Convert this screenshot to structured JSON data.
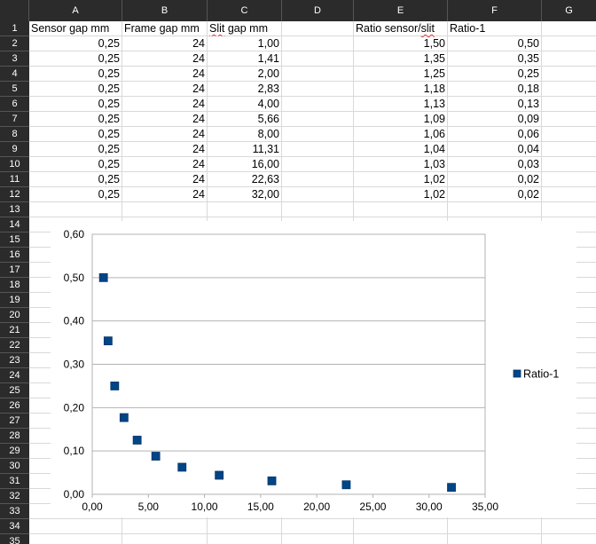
{
  "sheet": {
    "columns": [
      "A",
      "B",
      "C",
      "D",
      "E",
      "F",
      "G"
    ],
    "rows": [
      "1",
      "2",
      "3",
      "4",
      "5",
      "6",
      "7",
      "8",
      "9",
      "10",
      "11",
      "12",
      "13",
      "14",
      "15",
      "16",
      "17",
      "18",
      "19",
      "20",
      "21",
      "22",
      "23",
      "24",
      "25",
      "26",
      "27",
      "28",
      "29",
      "30",
      "31",
      "32",
      "33",
      "34",
      "35"
    ],
    "headers": {
      "a": "Sensor gap mm",
      "b": "Frame gap mm",
      "c": "Slit gap mm",
      "e": "Ratio sensor/slit",
      "f": "Ratio-1"
    },
    "data_rows": [
      {
        "a": "0,25",
        "b": "24",
        "c": "1,00",
        "e": "1,50",
        "f": "0,50"
      },
      {
        "a": "0,25",
        "b": "24",
        "c": "1,41",
        "e": "1,35",
        "f": "0,35"
      },
      {
        "a": "0,25",
        "b": "24",
        "c": "2,00",
        "e": "1,25",
        "f": "0,25"
      },
      {
        "a": "0,25",
        "b": "24",
        "c": "2,83",
        "e": "1,18",
        "f": "0,18"
      },
      {
        "a": "0,25",
        "b": "24",
        "c": "4,00",
        "e": "1,13",
        "f": "0,13"
      },
      {
        "a": "0,25",
        "b": "24",
        "c": "5,66",
        "e": "1,09",
        "f": "0,09"
      },
      {
        "a": "0,25",
        "b": "24",
        "c": "8,00",
        "e": "1,06",
        "f": "0,06"
      },
      {
        "a": "0,25",
        "b": "24",
        "c": "11,31",
        "e": "1,04",
        "f": "0,04"
      },
      {
        "a": "0,25",
        "b": "24",
        "c": "16,00",
        "e": "1,03",
        "f": "0,03"
      },
      {
        "a": "0,25",
        "b": "24",
        "c": "22,63",
        "e": "1,02",
        "f": "0,02"
      },
      {
        "a": "0,25",
        "b": "24",
        "c": "32,00",
        "e": "1,02",
        "f": "0,02"
      }
    ]
  },
  "chart_data": {
    "type": "scatter",
    "title": "",
    "xlabel": "",
    "ylabel": "",
    "xlim": [
      0,
      35
    ],
    "ylim": [
      0,
      0.6
    ],
    "x_ticks": [
      "0,00",
      "5,00",
      "10,00",
      "15,00",
      "20,00",
      "25,00",
      "30,00",
      "35,00"
    ],
    "y_ticks": [
      "0,00",
      "0,10",
      "0,20",
      "0,30",
      "0,40",
      "0,50",
      "0,60"
    ],
    "grid": "horizontal",
    "legend_position": "right",
    "series": [
      {
        "name": "Ratio-1",
        "color": "#004586",
        "marker": "square",
        "x": [
          1.0,
          1.41,
          2.0,
          2.83,
          4.0,
          5.66,
          8.0,
          11.31,
          16.0,
          22.63,
          32.0
        ],
        "y": [
          0.5,
          0.354,
          0.25,
          0.177,
          0.125,
          0.088,
          0.0625,
          0.044,
          0.031,
          0.022,
          0.016
        ]
      }
    ]
  },
  "colors": {
    "header_bg": "#2b2b2b",
    "header_text": "#ffffff",
    "gridline": "#d9d9d9",
    "marker": "#004586"
  }
}
